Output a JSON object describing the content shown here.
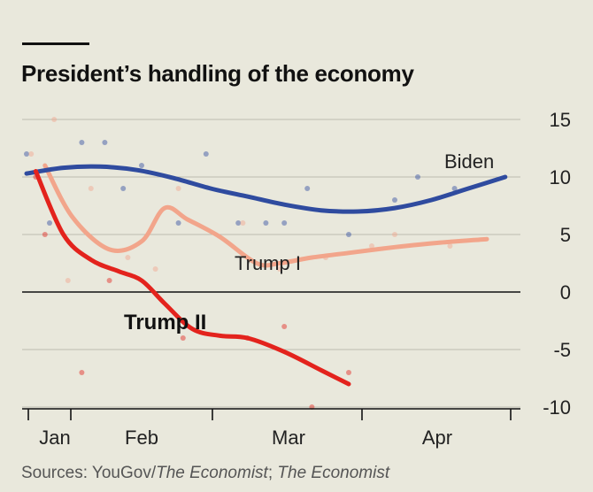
{
  "title": "President’s handling of the economy",
  "source": {
    "prefix": "Sources: YouGov/",
    "italic1": "The Economist",
    "middle": "; ",
    "italic2": "The Economist"
  },
  "colors": {
    "background": "#e9e8dc",
    "biden": "#2f4b9f",
    "trump1": "#f2a58b",
    "trump2": "#e3231d",
    "grid": "#bdbdb1",
    "zero": "#111111"
  },
  "chart_data": {
    "type": "line",
    "title": "President’s handling of the economy",
    "xlabel": "",
    "ylabel": "",
    "ylim": [
      -10,
      15
    ],
    "yticks": [
      15,
      10,
      5,
      0,
      -5,
      -10
    ],
    "xticks": [
      "Jan",
      "Feb",
      "Mar",
      "Apr"
    ],
    "x_unit": "days after January 20th",
    "xlim": [
      0,
      105
    ],
    "grid": true,
    "series": [
      {
        "name": "Biden",
        "color": "#2f4b9f",
        "x": [
          0,
          8,
          16,
          24,
          32,
          40,
          48,
          56,
          64,
          72,
          80,
          88,
          96,
          104
        ],
        "values": [
          10.3,
          10.8,
          10.9,
          10.6,
          9.9,
          9.0,
          8.3,
          7.6,
          7.1,
          7.0,
          7.3,
          8.0,
          9.0,
          10.0
        ],
        "scatter": [
          {
            "x": 0,
            "y": 12
          },
          {
            "x": 5,
            "y": 6
          },
          {
            "x": 12,
            "y": 13
          },
          {
            "x": 17,
            "y": 13
          },
          {
            "x": 21,
            "y": 9
          },
          {
            "x": 25,
            "y": 11
          },
          {
            "x": 33,
            "y": 6
          },
          {
            "x": 39,
            "y": 12
          },
          {
            "x": 46,
            "y": 6
          },
          {
            "x": 52,
            "y": 6
          },
          {
            "x": 56,
            "y": 6
          },
          {
            "x": 61,
            "y": 9
          },
          {
            "x": 70,
            "y": 5
          },
          {
            "x": 80,
            "y": 8
          },
          {
            "x": 85,
            "y": 10
          },
          {
            "x": 93,
            "y": 9
          }
        ]
      },
      {
        "name": "Trump I",
        "color": "#f2a58b",
        "x": [
          4,
          10,
          18,
          25,
          30,
          35,
          42,
          50,
          55,
          62,
          70,
          80,
          90,
          100
        ],
        "values": [
          11,
          6.5,
          3.7,
          4.4,
          7.3,
          6.3,
          4.8,
          2.5,
          2.5,
          3.0,
          3.4,
          3.9,
          4.3,
          4.6
        ],
        "scatter": [
          {
            "x": 1,
            "y": 12
          },
          {
            "x": 6,
            "y": 15
          },
          {
            "x": 9,
            "y": 1
          },
          {
            "x": 14,
            "y": 9
          },
          {
            "x": 22,
            "y": 3
          },
          {
            "x": 28,
            "y": 2
          },
          {
            "x": 33,
            "y": 9
          },
          {
            "x": 47,
            "y": 6
          },
          {
            "x": 55,
            "y": 2
          },
          {
            "x": 65,
            "y": 3
          },
          {
            "x": 75,
            "y": 4
          },
          {
            "x": 80,
            "y": 5
          },
          {
            "x": 92,
            "y": 4
          }
        ]
      },
      {
        "name": "Trump II",
        "color": "#e3231d",
        "x": [
          2,
          8,
          14,
          20,
          25,
          30,
          36,
          42,
          48,
          56,
          64,
          70
        ],
        "values": [
          10.5,
          5.0,
          2.8,
          1.8,
          1.0,
          -1.0,
          -3.2,
          -3.8,
          -4.0,
          -5.2,
          -6.8,
          -8.0
        ],
        "scatter": [
          {
            "x": 2,
            "y": 10
          },
          {
            "x": 4,
            "y": 5
          },
          {
            "x": 12,
            "y": -7
          },
          {
            "x": 18,
            "y": 1
          },
          {
            "x": 34,
            "y": -4
          },
          {
            "x": 48,
            "y": -4
          },
          {
            "x": 56,
            "y": -3
          },
          {
            "x": 62,
            "y": -10
          },
          {
            "x": 70,
            "y": -7
          }
        ]
      }
    ]
  }
}
